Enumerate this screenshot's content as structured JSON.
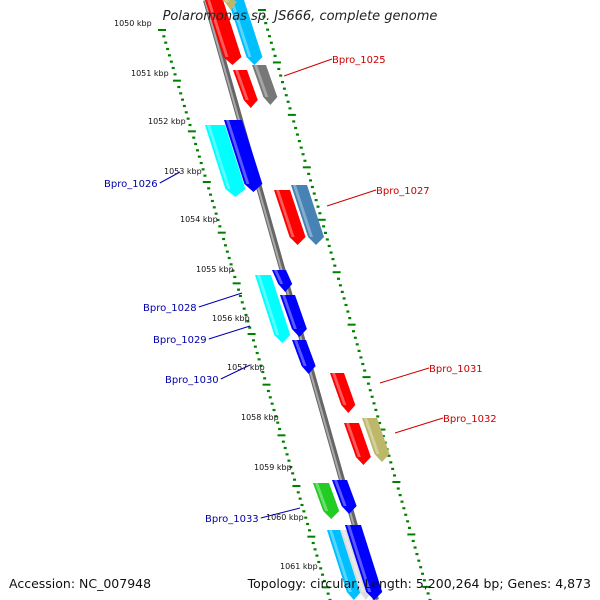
{
  "title": "Polaromonas sp. JS666, complete genome",
  "footer": {
    "accession": "Accession: NC_007948",
    "summary": "Topology: circular; Length: 5,200,264 bp; Genes: 4,873"
  },
  "kbp_labels": [
    "1050 kbp",
    "1051 kbp",
    "1052 kbp",
    "1053 kbp",
    "1054 kbp",
    "1055 kbp",
    "1056 kbp",
    "1057 kbp",
    "1058 kbp",
    "1059 kbp",
    "1060 kbp",
    "1061 kbp"
  ],
  "gene_labels": [
    {
      "id": "Bpro_1025",
      "color": "#cc0000"
    },
    {
      "id": "Bpro_1026",
      "color": "#0000aa"
    },
    {
      "id": "Bpro_1027",
      "color": "#cc0000"
    },
    {
      "id": "Bpro_1028",
      "color": "#0000aa"
    },
    {
      "id": "Bpro_1029",
      "color": "#0000aa"
    },
    {
      "id": "Bpro_1030",
      "color": "#0000aa"
    },
    {
      "id": "Bpro_1031",
      "color": "#cc0000"
    },
    {
      "id": "Bpro_1032",
      "color": "#cc0000"
    },
    {
      "id": "Bpro_1033",
      "color": "#0000aa"
    }
  ],
  "colors": {
    "red": "#ff0000",
    "gray": "#777777",
    "cyan": "#00ffff",
    "blue": "#0000ff",
    "steel": "#4682b4",
    "khaki": "#bdb76b",
    "green": "#22cc22",
    "lightblue": "#00bfff",
    "tick": "#008000",
    "backbone": "#888888"
  }
}
